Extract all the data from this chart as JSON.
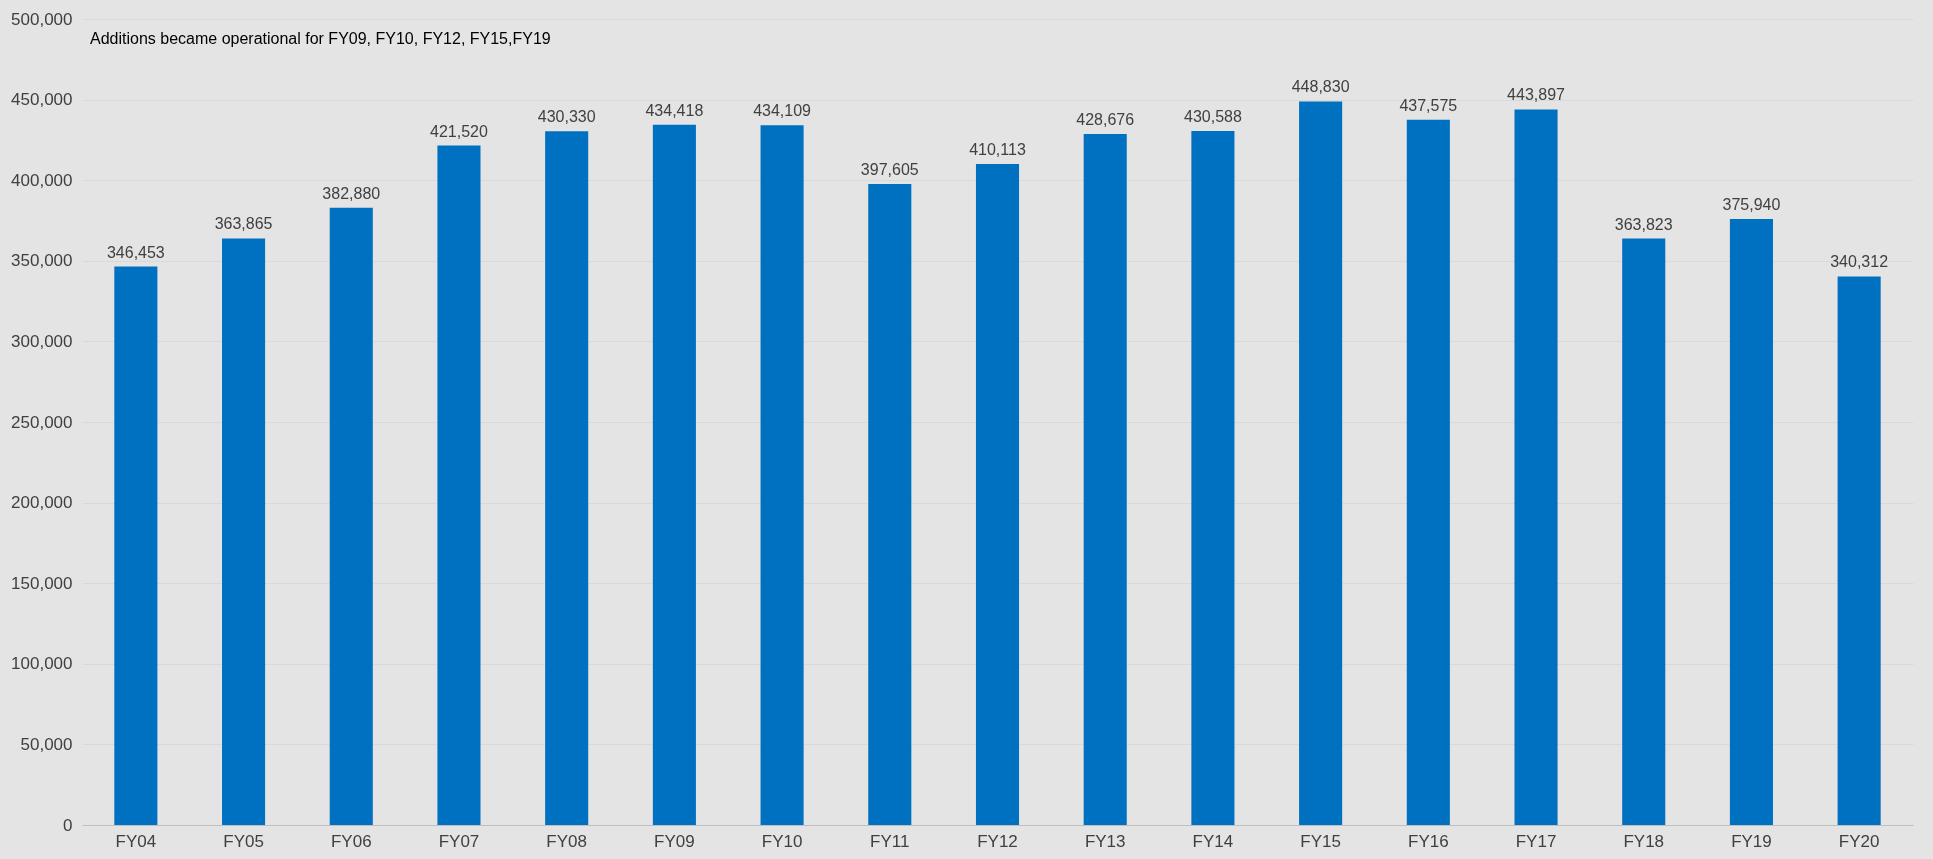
{
  "chart_data": {
    "type": "bar",
    "categories": [
      "FY04",
      "FY05",
      "FY06",
      "FY07",
      "FY08",
      "FY09",
      "FY10",
      "FY11",
      "FY12",
      "FY13",
      "FY14",
      "FY15",
      "FY16",
      "FY17",
      "FY18",
      "FY19",
      "FY20"
    ],
    "values": [
      346453,
      363865,
      382880,
      421520,
      430330,
      434418,
      434109,
      397605,
      410113,
      428676,
      430588,
      448830,
      437575,
      443897,
      363823,
      375940,
      340312
    ],
    "value_labels": [
      "346,453",
      "363,865",
      "382,880",
      "421,520",
      "430,330",
      "434,418",
      "434,109",
      "397,605",
      "410,113",
      "428,676",
      "430,588",
      "448,830",
      "437,575",
      "443,897",
      "363,823",
      "375,940",
      "340,312"
    ],
    "color": "#0070c0",
    "ylim": [
      0,
      500000
    ],
    "yticks": [
      0,
      {
        "value": 50000,
        "label": "50,000"
      },
      {
        "value": 100000,
        "label": "100,000"
      },
      {
        "value": 150000,
        "label": "150,000"
      },
      {
        "value": 200000,
        "label": "200,000"
      },
      {
        "value": 250000,
        "label": "250,000"
      },
      {
        "value": 300000,
        "label": "300,000"
      },
      {
        "value": 350000,
        "label": "350,000"
      },
      {
        "value": 400000,
        "label": "400,000"
      },
      {
        "value": 450000,
        "label": "450,000"
      },
      {
        "value": 500000,
        "label": "500,000"
      }
    ],
    "grid": "y",
    "annotations": [
      "Additions became operational for FY09, FY10, FY12, FY15,FY19"
    ]
  }
}
